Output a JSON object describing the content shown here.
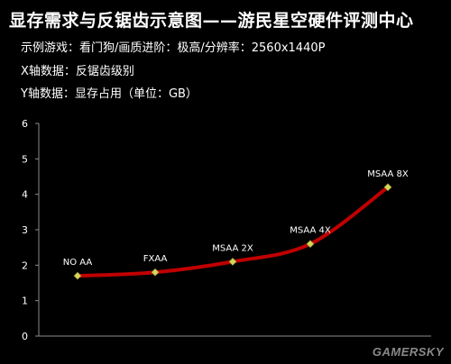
{
  "header": {
    "title": "显存需求与反锯齿示意图——游民星空硬件评测中心",
    "info_game": "示例游戏：看门狗/画质进阶：极高/分辨率：2560x1440P",
    "info_x": "X轴数据：反锯齿级别",
    "info_y": "Y轴数据：显存占用（单位：GB）"
  },
  "watermark": "GAMERSKY",
  "colors": {
    "line": "#c00000",
    "marker": "#d6d65a",
    "axis": "#8c8c8c",
    "text": "#ffffff"
  },
  "chart_data": {
    "type": "line",
    "categories": [
      "NO AA",
      "FXAA",
      "MSAA 2X",
      "MSAA 4X",
      "MSAA 8X"
    ],
    "values": [
      1.7,
      1.8,
      2.1,
      2.6,
      4.2
    ],
    "ylim": [
      0,
      6
    ],
    "yticks": [
      0,
      1,
      2,
      3,
      4,
      5,
      6
    ],
    "grid": false,
    "data_labels": [
      "NO AA",
      "FXAA",
      "MSAA 2X",
      "MSAA 4X",
      "MSAA 8X"
    ]
  }
}
